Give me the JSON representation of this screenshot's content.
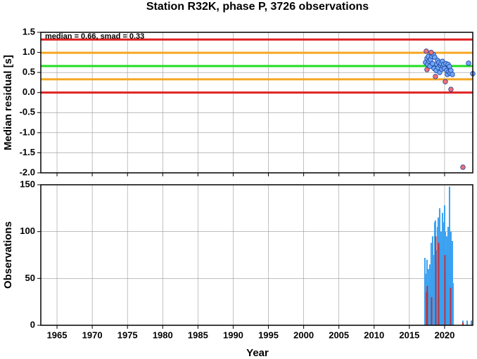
{
  "chart_data": [
    {
      "type": "scatter",
      "title": "Station R32K, phase P, 3726 observations",
      "ylabel": "Median residual [s]",
      "annotation": "median = 0.66, smad = 0.33",
      "ylim": [
        -2.0,
        1.5
      ],
      "yticks": [
        1.5,
        {
          "value": 1.0,
          "label": "1.0"
        },
        0.5,
        {
          "value": 0.0,
          "label": "0.0"
        },
        -0.5,
        {
          "value": -1.0,
          "label": "-1.0"
        },
        -1.5,
        {
          "value": -2.0,
          "label": "-2.0"
        }
      ],
      "grid": true,
      "hlines": [
        {
          "value": 1.32,
          "color": "#e02020"
        },
        {
          "value": 0.99,
          "color": "#f5a623"
        },
        {
          "value": 0.66,
          "color": "#22dd22"
        },
        {
          "value": 0.33,
          "color": "#f5a623"
        },
        {
          "value": 0,
          "color": "#e02020"
        }
      ],
      "series": [
        {
          "color": "#6fa8f5",
          "x": [
            2017.3,
            2017.5,
            2017.6,
            2017.7,
            2017.8,
            2017.9,
            2018.0,
            2018.2,
            2018.3,
            2018.4,
            2018.5,
            2018.6,
            2018.8,
            2018.9,
            2019.0,
            2019.1,
            2019.2,
            2019.3,
            2019.4,
            2019.5,
            2019.6,
            2019.7,
            2019.8,
            2019.9,
            2020.0,
            2020.2,
            2020.3,
            2020.4,
            2020.5,
            2020.6,
            2020.7,
            2020.8,
            2020.9,
            2021.1,
            2023.4,
            2024.0
          ],
          "values": [
            0.75,
            0.85,
            0.7,
            0.9,
            0.78,
            0.65,
            0.82,
            0.9,
            0.72,
            0.95,
            0.6,
            0.88,
            0.55,
            0.7,
            0.8,
            0.62,
            0.75,
            0.5,
            0.68,
            0.72,
            0.58,
            0.78,
            0.65,
            0.7,
            0.6,
            0.72,
            0.55,
            0.45,
            0.7,
            0.52,
            0.65,
            0.48,
            0.55,
            0.45,
            0.73,
            0.47
          ]
        },
        {
          "color": "#f07070",
          "x": [
            2017.4,
            2017.5,
            2018.1,
            2018.7,
            2020.1,
            2020.9,
            2022.6
          ],
          "values": [
            1.03,
            0.57,
            1.0,
            0.4,
            0.27,
            0.08,
            -1.86
          ]
        }
      ]
    },
    {
      "type": "bar",
      "ylabel": "Observations",
      "xlabel": "Year",
      "xlim": [
        1962.7,
        2024.0
      ],
      "xticks": [
        1965,
        1970,
        1975,
        1980,
        1985,
        1990,
        1995,
        2000,
        2005,
        2010,
        2015,
        2020
      ],
      "ylim": [
        0,
        150
      ],
      "yticks": [
        0,
        50,
        100,
        150
      ],
      "grid": true,
      "series": [
        {
          "color": "#3aa0f0",
          "x": [
            2017.2,
            2017.3,
            2017.4,
            2017.5,
            2017.6,
            2017.7,
            2017.8,
            2017.9,
            2018.0,
            2018.1,
            2018.2,
            2018.3,
            2018.4,
            2018.5,
            2018.6,
            2018.7,
            2018.8,
            2018.9,
            2019.0,
            2019.1,
            2019.2,
            2019.3,
            2019.4,
            2019.5,
            2019.6,
            2019.7,
            2019.8,
            2019.9,
            2020.0,
            2020.1,
            2020.2,
            2020.3,
            2020.4,
            2020.5,
            2020.6,
            2020.7,
            2020.8,
            2020.9,
            2021.0,
            2021.1,
            2021.2,
            2022.6,
            2023.2,
            2023.8
          ],
          "values": [
            72,
            55,
            40,
            70,
            45,
            60,
            35,
            65,
            50,
            88,
            60,
            95,
            75,
            55,
            110,
            112,
            80,
            70,
            105,
            115,
            95,
            125,
            85,
            100,
            75,
            120,
            90,
            110,
            128,
            100,
            60,
            95,
            80,
            105,
            70,
            148,
            90,
            100,
            60,
            90,
            45,
            5,
            5,
            5
          ]
        },
        {
          "color": "#c0303a",
          "x": [
            2017.45,
            2017.55,
            2018.15,
            2018.75,
            2019.15,
            2020.05,
            2020.85,
            2022.6
          ],
          "values": [
            35,
            42,
            30,
            95,
            88,
            75,
            40,
            3
          ]
        }
      ]
    }
  ]
}
